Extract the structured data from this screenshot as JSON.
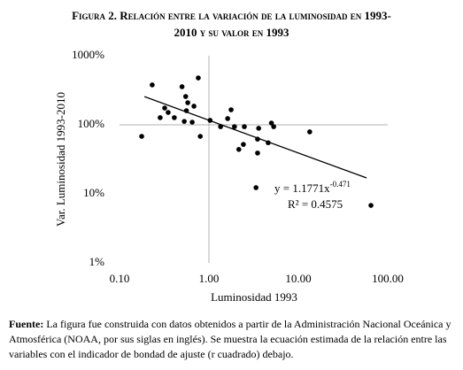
{
  "chart_data": {
    "type": "scatter",
    "title": "Figura 2. Relación entre la variación de la luminosidad en 1993-2010 y su valor en 1993",
    "x_label": "Luminosidad 1993",
    "y_label": "Var. Luminosidad 1993-2010",
    "x_log": true,
    "y_log": true,
    "xlim": [
      0.1,
      100
    ],
    "ylim": [
      1,
      1000
    ],
    "xticks": [
      {
        "value": 0.1,
        "label": "0.10"
      },
      {
        "value": 1,
        "label": "1.00"
      },
      {
        "value": 10,
        "label": "10.00"
      },
      {
        "value": 100,
        "label": "100.00"
      }
    ],
    "yticks": [
      {
        "value": 1,
        "label": "1%"
      },
      {
        "value": 10,
        "label": "10%"
      },
      {
        "value": 100,
        "label": "100%"
      },
      {
        "value": 1000,
        "label": "1000%"
      }
    ],
    "x_axis_at_y": 100,
    "y_axis_at_x": 1,
    "color": "#000000",
    "x": [
      0.177,
      0.232,
      0.285,
      0.32,
      0.35,
      0.41,
      0.5,
      0.53,
      0.55,
      0.56,
      0.58,
      0.65,
      0.68,
      0.76,
      0.8,
      1.03,
      1.35,
      1.62,
      1.77,
      1.93,
      2.16,
      2.43,
      2.49,
      3.36,
      3.5,
      3.5,
      3.6,
      4.6,
      5.0,
      5.3,
      13.4,
      64.9
    ],
    "values": [
      68,
      378,
      127,
      175,
      151,
      127,
      356,
      112,
      257,
      160,
      209,
      109,
      186,
      477,
      68,
      116,
      94,
      123,
      165,
      94,
      44,
      52,
      94,
      12.3,
      62,
      39,
      89,
      55,
      106,
      94,
      79,
      6.8
    ],
    "trendline": {
      "color": "#000000",
      "x": [
        0.19,
        58
      ],
      "y": [
        256,
        17
      ]
    },
    "annotation": {
      "equation": "y = 1.1771x",
      "exponent": "-0.471",
      "r2": "R² = 0.4575"
    }
  },
  "caption": {
    "label": "Fuente:",
    "text": "La figura fue construida con datos obtenidos a partir de la Administración Nacional Oceánica y Atmosférica (NOAA, por sus siglas en inglés). Se muestra la ecuación estimada de la relación entre las variables con el indicador de bondad de ajuste (r cuadrado) debajo."
  }
}
